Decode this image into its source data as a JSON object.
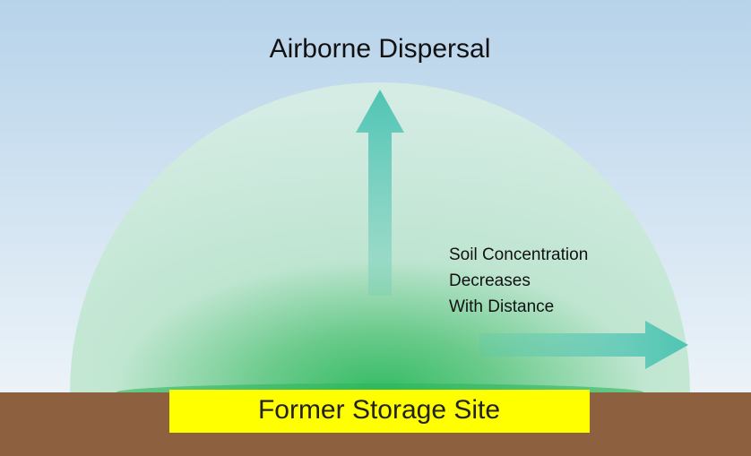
{
  "title": "Airborne Dispersal",
  "annotation": {
    "lines": [
      "Soil Concentration",
      "Decreases",
      "With Distance"
    ]
  },
  "site_label": "Former Storage Site"
}
